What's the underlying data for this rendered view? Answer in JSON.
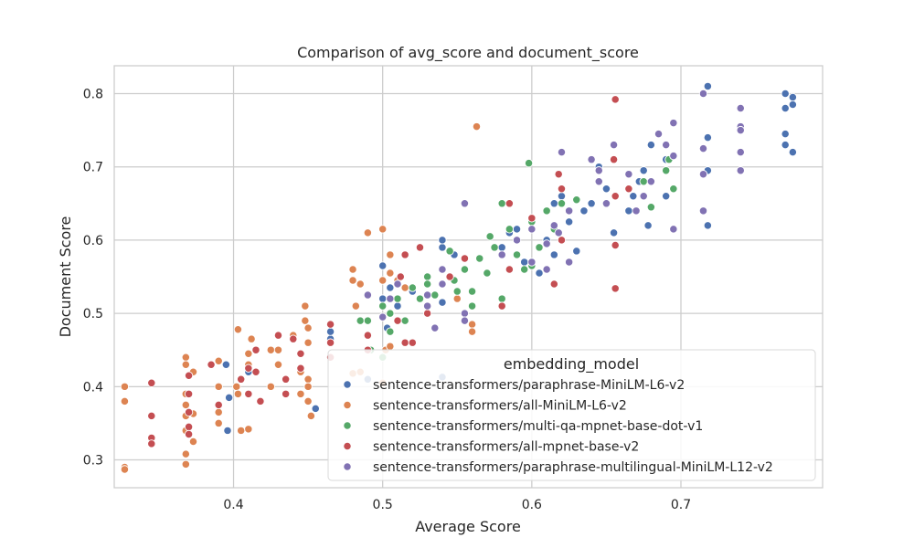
{
  "chart_data": {
    "type": "scatter",
    "title": "Comparison of avg_score and document_score",
    "xlabel": "Average Score",
    "ylabel": "Document Score",
    "xlim": [
      0.32,
      0.795
    ],
    "ylim": [
      0.262,
      0.838
    ],
    "xticks": [
      "0.4",
      "0.5",
      "0.6",
      "0.7"
    ],
    "yticks": [
      "0.3",
      "0.4",
      "0.5",
      "0.6",
      "0.7",
      "0.8"
    ],
    "grid": true,
    "legend": {
      "title": "embedding_model",
      "placement": "lower-right"
    },
    "series": [
      {
        "name": "sentence-transformers/paraphrase-MiniLM-L6-v2",
        "color": "#4c72b0",
        "points": [
          [
            0.395,
            0.43
          ],
          [
            0.396,
            0.34
          ],
          [
            0.397,
            0.385
          ],
          [
            0.41,
            0.42
          ],
          [
            0.455,
            0.37
          ],
          [
            0.465,
            0.465
          ],
          [
            0.465,
            0.475
          ],
          [
            0.5,
            0.52
          ],
          [
            0.5,
            0.565
          ],
          [
            0.503,
            0.48
          ],
          [
            0.505,
            0.535
          ],
          [
            0.51,
            0.51
          ],
          [
            0.52,
            0.53
          ],
          [
            0.53,
            0.55
          ],
          [
            0.54,
            0.59
          ],
          [
            0.54,
            0.6
          ],
          [
            0.54,
            0.515
          ],
          [
            0.548,
            0.58
          ],
          [
            0.58,
            0.59
          ],
          [
            0.585,
            0.61
          ],
          [
            0.59,
            0.615
          ],
          [
            0.595,
            0.57
          ],
          [
            0.605,
            0.555
          ],
          [
            0.61,
            0.6
          ],
          [
            0.615,
            0.65
          ],
          [
            0.615,
            0.58
          ],
          [
            0.62,
            0.66
          ],
          [
            0.625,
            0.625
          ],
          [
            0.63,
            0.585
          ],
          [
            0.635,
            0.64
          ],
          [
            0.64,
            0.65
          ],
          [
            0.645,
            0.7
          ],
          [
            0.65,
            0.67
          ],
          [
            0.655,
            0.61
          ],
          [
            0.665,
            0.64
          ],
          [
            0.668,
            0.66
          ],
          [
            0.672,
            0.68
          ],
          [
            0.675,
            0.695
          ],
          [
            0.678,
            0.62
          ],
          [
            0.68,
            0.73
          ],
          [
            0.69,
            0.71
          ],
          [
            0.69,
            0.66
          ],
          [
            0.718,
            0.81
          ],
          [
            0.718,
            0.74
          ],
          [
            0.718,
            0.695
          ],
          [
            0.718,
            0.62
          ],
          [
            0.77,
            0.8
          ],
          [
            0.77,
            0.78
          ],
          [
            0.77,
            0.745
          ],
          [
            0.77,
            0.73
          ],
          [
            0.775,
            0.795
          ],
          [
            0.775,
            0.785
          ],
          [
            0.775,
            0.72
          ],
          [
            0.54,
            0.413
          ],
          [
            0.49,
            0.41
          ]
        ]
      },
      {
        "name": "sentence-transformers/all-MiniLM-L6-v2",
        "color": "#dd8452",
        "points": [
          [
            0.327,
            0.4
          ],
          [
            0.327,
            0.38
          ],
          [
            0.327,
            0.29
          ],
          [
            0.327,
            0.287
          ],
          [
            0.368,
            0.44
          ],
          [
            0.368,
            0.43
          ],
          [
            0.368,
            0.39
          ],
          [
            0.368,
            0.375
          ],
          [
            0.368,
            0.36
          ],
          [
            0.368,
            0.34
          ],
          [
            0.368,
            0.308
          ],
          [
            0.368,
            0.294
          ],
          [
            0.373,
            0.42
          ],
          [
            0.373,
            0.363
          ],
          [
            0.373,
            0.325
          ],
          [
            0.39,
            0.4
          ],
          [
            0.39,
            0.365
          ],
          [
            0.39,
            0.35
          ],
          [
            0.39,
            0.435
          ],
          [
            0.402,
            0.4
          ],
          [
            0.403,
            0.478
          ],
          [
            0.403,
            0.39
          ],
          [
            0.405,
            0.34
          ],
          [
            0.41,
            0.445
          ],
          [
            0.41,
            0.43
          ],
          [
            0.41,
            0.39
          ],
          [
            0.412,
            0.465
          ],
          [
            0.41,
            0.342
          ],
          [
            0.425,
            0.45
          ],
          [
            0.425,
            0.4
          ],
          [
            0.43,
            0.45
          ],
          [
            0.43,
            0.43
          ],
          [
            0.44,
            0.47
          ],
          [
            0.445,
            0.42
          ],
          [
            0.445,
            0.39
          ],
          [
            0.448,
            0.51
          ],
          [
            0.448,
            0.49
          ],
          [
            0.45,
            0.48
          ],
          [
            0.45,
            0.46
          ],
          [
            0.45,
            0.41
          ],
          [
            0.45,
            0.4
          ],
          [
            0.45,
            0.38
          ],
          [
            0.452,
            0.36
          ],
          [
            0.48,
            0.56
          ],
          [
            0.48,
            0.545
          ],
          [
            0.482,
            0.51
          ],
          [
            0.485,
            0.42
          ],
          [
            0.485,
            0.54
          ],
          [
            0.49,
            0.61
          ],
          [
            0.49,
            0.525
          ],
          [
            0.5,
            0.615
          ],
          [
            0.5,
            0.545
          ],
          [
            0.505,
            0.555
          ],
          [
            0.505,
            0.58
          ],
          [
            0.51,
            0.545
          ],
          [
            0.515,
            0.535
          ],
          [
            0.502,
            0.45
          ],
          [
            0.505,
            0.455
          ],
          [
            0.55,
            0.52
          ],
          [
            0.56,
            0.485
          ],
          [
            0.56,
            0.475
          ],
          [
            0.563,
            0.755
          ],
          [
            0.48,
            0.418
          ],
          [
            0.5,
            0.405
          ]
        ]
      },
      {
        "name": "sentence-transformers/multi-qa-mpnet-base-dot-v1",
        "color": "#55a868",
        "points": [
          [
            0.485,
            0.49
          ],
          [
            0.49,
            0.49
          ],
          [
            0.492,
            0.45
          ],
          [
            0.5,
            0.51
          ],
          [
            0.505,
            0.5
          ],
          [
            0.505,
            0.475
          ],
          [
            0.51,
            0.52
          ],
          [
            0.515,
            0.49
          ],
          [
            0.52,
            0.535
          ],
          [
            0.525,
            0.52
          ],
          [
            0.53,
            0.55
          ],
          [
            0.53,
            0.54
          ],
          [
            0.535,
            0.525
          ],
          [
            0.545,
            0.585
          ],
          [
            0.548,
            0.545
          ],
          [
            0.55,
            0.53
          ],
          [
            0.555,
            0.56
          ],
          [
            0.56,
            0.53
          ],
          [
            0.565,
            0.575
          ],
          [
            0.57,
            0.555
          ],
          [
            0.575,
            0.59
          ],
          [
            0.58,
            0.65
          ],
          [
            0.58,
            0.52
          ],
          [
            0.585,
            0.615
          ],
          [
            0.59,
            0.58
          ],
          [
            0.595,
            0.56
          ],
          [
            0.598,
            0.705
          ],
          [
            0.6,
            0.625
          ],
          [
            0.6,
            0.565
          ],
          [
            0.605,
            0.59
          ],
          [
            0.61,
            0.64
          ],
          [
            0.615,
            0.615
          ],
          [
            0.62,
            0.6
          ],
          [
            0.62,
            0.65
          ],
          [
            0.63,
            0.655
          ],
          [
            0.675,
            0.68
          ],
          [
            0.68,
            0.645
          ],
          [
            0.69,
            0.695
          ],
          [
            0.692,
            0.71
          ],
          [
            0.695,
            0.67
          ],
          [
            0.5,
            0.44
          ],
          [
            0.56,
            0.51
          ],
          [
            0.572,
            0.605
          ]
        ]
      },
      {
        "name": "sentence-transformers/all-mpnet-base-v2",
        "color": "#c44e52",
        "points": [
          [
            0.345,
            0.405
          ],
          [
            0.345,
            0.36
          ],
          [
            0.345,
            0.33
          ],
          [
            0.345,
            0.322
          ],
          [
            0.37,
            0.415
          ],
          [
            0.37,
            0.39
          ],
          [
            0.37,
            0.365
          ],
          [
            0.37,
            0.345
          ],
          [
            0.37,
            0.335
          ],
          [
            0.385,
            0.43
          ],
          [
            0.39,
            0.375
          ],
          [
            0.405,
            0.41
          ],
          [
            0.41,
            0.425
          ],
          [
            0.41,
            0.39
          ],
          [
            0.415,
            0.45
          ],
          [
            0.415,
            0.42
          ],
          [
            0.418,
            0.38
          ],
          [
            0.43,
            0.47
          ],
          [
            0.435,
            0.41
          ],
          [
            0.435,
            0.39
          ],
          [
            0.44,
            0.465
          ],
          [
            0.445,
            0.445
          ],
          [
            0.445,
            0.425
          ],
          [
            0.465,
            0.485
          ],
          [
            0.465,
            0.46
          ],
          [
            0.465,
            0.44
          ],
          [
            0.49,
            0.47
          ],
          [
            0.49,
            0.45
          ],
          [
            0.51,
            0.49
          ],
          [
            0.512,
            0.55
          ],
          [
            0.515,
            0.58
          ],
          [
            0.515,
            0.46
          ],
          [
            0.525,
            0.59
          ],
          [
            0.53,
            0.5
          ],
          [
            0.545,
            0.55
          ],
          [
            0.555,
            0.575
          ],
          [
            0.58,
            0.51
          ],
          [
            0.585,
            0.65
          ],
          [
            0.585,
            0.56
          ],
          [
            0.6,
            0.615
          ],
          [
            0.6,
            0.63
          ],
          [
            0.615,
            0.54
          ],
          [
            0.618,
            0.69
          ],
          [
            0.62,
            0.67
          ],
          [
            0.62,
            0.6
          ],
          [
            0.655,
            0.71
          ],
          [
            0.656,
            0.792
          ],
          [
            0.656,
            0.66
          ],
          [
            0.656,
            0.593
          ],
          [
            0.656,
            0.534
          ],
          [
            0.665,
            0.67
          ],
          [
            0.52,
            0.46
          ]
        ]
      },
      {
        "name": "sentence-transformers/paraphrase-multilingual-MiniLM-L12-v2",
        "color": "#8172b3",
        "points": [
          [
            0.49,
            0.525
          ],
          [
            0.5,
            0.495
          ],
          [
            0.505,
            0.52
          ],
          [
            0.51,
            0.54
          ],
          [
            0.53,
            0.525
          ],
          [
            0.53,
            0.51
          ],
          [
            0.535,
            0.48
          ],
          [
            0.54,
            0.54
          ],
          [
            0.54,
            0.56
          ],
          [
            0.555,
            0.65
          ],
          [
            0.555,
            0.5
          ],
          [
            0.555,
            0.49
          ],
          [
            0.58,
            0.58
          ],
          [
            0.59,
            0.6
          ],
          [
            0.6,
            0.57
          ],
          [
            0.6,
            0.615
          ],
          [
            0.61,
            0.56
          ],
          [
            0.615,
            0.62
          ],
          [
            0.618,
            0.61
          ],
          [
            0.62,
            0.72
          ],
          [
            0.625,
            0.64
          ],
          [
            0.64,
            0.71
          ],
          [
            0.645,
            0.695
          ],
          [
            0.645,
            0.68
          ],
          [
            0.65,
            0.65
          ],
          [
            0.655,
            0.73
          ],
          [
            0.665,
            0.69
          ],
          [
            0.67,
            0.64
          ],
          [
            0.675,
            0.66
          ],
          [
            0.68,
            0.68
          ],
          [
            0.685,
            0.745
          ],
          [
            0.69,
            0.73
          ],
          [
            0.695,
            0.76
          ],
          [
            0.695,
            0.715
          ],
          [
            0.695,
            0.615
          ],
          [
            0.715,
            0.8
          ],
          [
            0.715,
            0.725
          ],
          [
            0.715,
            0.69
          ],
          [
            0.715,
            0.64
          ],
          [
            0.74,
            0.78
          ],
          [
            0.74,
            0.755
          ],
          [
            0.74,
            0.75
          ],
          [
            0.74,
            0.72
          ],
          [
            0.74,
            0.695
          ],
          [
            0.61,
            0.595
          ],
          [
            0.625,
            0.57
          ]
        ]
      }
    ]
  }
}
